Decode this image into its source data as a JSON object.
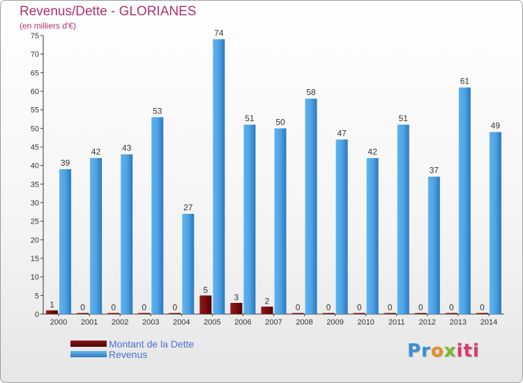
{
  "chart_data": {
    "type": "bar",
    "title": "Revenus/Dette - GLORIANES",
    "subtitle": "(en milliers d'€)",
    "categories": [
      "2000",
      "2001",
      "2002",
      "2003",
      "2004",
      "2005",
      "2006",
      "2007",
      "2008",
      "2009",
      "2010",
      "2011",
      "2012",
      "2013",
      "2014"
    ],
    "series": [
      {
        "name": "Montant de la Dette",
        "color": "#7a0c0c",
        "values": [
          1,
          0,
          0,
          0,
          0,
          5,
          3,
          2,
          0,
          0,
          0,
          0,
          0,
          0,
          0
        ]
      },
      {
        "name": "Revenus",
        "color": "#4ea6e6",
        "values": [
          39,
          42,
          43,
          53,
          27,
          74,
          51,
          50,
          58,
          47,
          42,
          51,
          37,
          61,
          49
        ]
      }
    ],
    "ylim": [
      0,
      75
    ],
    "yticks": [
      0,
      5,
      10,
      15,
      20,
      25,
      30,
      35,
      40,
      45,
      50,
      55,
      60,
      65,
      70,
      75
    ],
    "grid": false,
    "legend_position": "bottom-left"
  },
  "logo": {
    "text": "Proxiti"
  }
}
